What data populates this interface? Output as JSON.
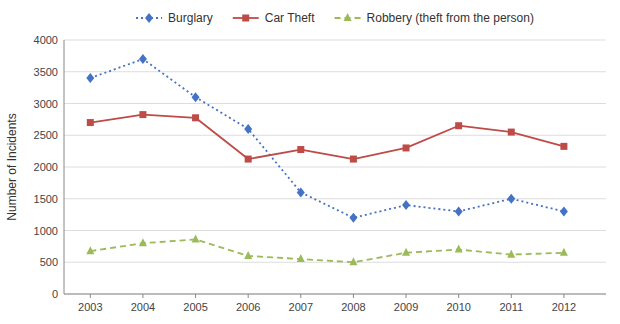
{
  "chart_data": {
    "type": "line",
    "y_label": "Number of Incidents",
    "x": [
      2003,
      2004,
      2005,
      2006,
      2007,
      2008,
      2009,
      2010,
      2011,
      2012
    ],
    "xlim": [
      2002.5,
      2012.8
    ],
    "xticks": [
      2003,
      2004,
      2005,
      2006,
      2007,
      2008,
      2009,
      2010,
      2011,
      2012
    ],
    "ylim": [
      0,
      4000
    ],
    "yticks": [
      0,
      500,
      1000,
      1500,
      2000,
      2500,
      3000,
      3500,
      4000
    ],
    "grid": true,
    "legend": "top",
    "series": [
      {
        "name": "Burglary",
        "color": "#4472C4",
        "marker": "diamond",
        "line_style": "dotted",
        "values": [
          3400,
          3700,
          3100,
          2600,
          1600,
          1200,
          1400,
          1300,
          1500,
          1300
        ]
      },
      {
        "name": "Car Theft",
        "color": "#BE4B48",
        "marker": "square",
        "line_style": "solid",
        "values": [
          2700,
          2825,
          2775,
          2125,
          2275,
          2125,
          2300,
          2650,
          2550,
          2325
        ]
      },
      {
        "name": "Robbery (theft from the person)",
        "color": "#9BBB59",
        "marker": "triangle",
        "line_style": "dashed",
        "values": [
          675,
          800,
          860,
          600,
          550,
          500,
          650,
          700,
          620,
          650
        ]
      }
    ]
  }
}
